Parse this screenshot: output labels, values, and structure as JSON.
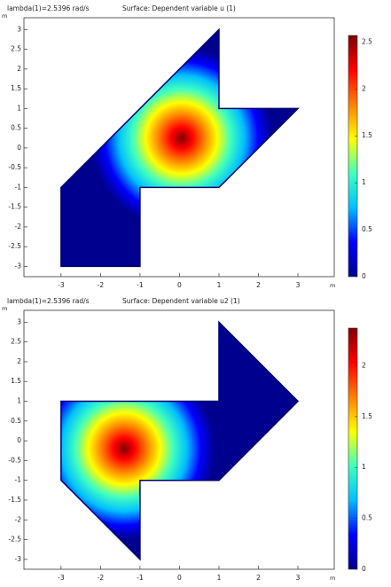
{
  "chart_data": [
    {
      "type": "surface",
      "subtitle": "lambda(1)=2.5396 rad/s",
      "title": "Surface: Dependent variable u (1)",
      "xlabel": "m",
      "ylabel": "m",
      "xlim": [
        -3.94,
        3.92
      ],
      "ylim": [
        -3.26,
        3.3
      ],
      "xticks": [
        -3,
        -2,
        -1,
        0,
        1,
        2,
        3
      ],
      "yticks": [
        -3,
        -2.5,
        -2,
        -1.5,
        -1,
        -0.5,
        0,
        0.5,
        1,
        1.5,
        2,
        2.5,
        3
      ],
      "domain_x": [
        1,
        1,
        3,
        1,
        -1,
        -1,
        -3,
        -3
      ],
      "domain_y": [
        3,
        1,
        1,
        -1,
        -1,
        -3,
        -3,
        -1
      ],
      "peak_x": 0.05,
      "peak_y": 0.25,
      "clim": [
        0,
        2.57
      ],
      "cticks": [
        0,
        0.5,
        1,
        1.5,
        2,
        2.5
      ],
      "colormap": [
        "#00008f",
        "#0000ff",
        "#00c0ff",
        "#40ffbf",
        "#ffff00",
        "#ff8000",
        "#ff0000",
        "#800000"
      ]
    },
    {
      "type": "surface",
      "subtitle": "lambda(1)=2.5396 rad/s",
      "title": "Surface: Dependent variable u2 (1)",
      "xlabel": "m",
      "ylabel": "m",
      "xlim": [
        -3.94,
        3.92
      ],
      "ylim": [
        -3.25,
        3.3
      ],
      "xticks": [
        -3,
        -2,
        -1,
        0,
        1,
        2,
        3
      ],
      "yticks": [
        -3,
        -2.5,
        -2,
        -1.5,
        -1,
        -0.5,
        0,
        0.5,
        1,
        1.5,
        2,
        2.5,
        3
      ],
      "domain_x": [
        -3,
        1,
        1,
        3,
        1,
        -1,
        -1,
        -3
      ],
      "domain_y": [
        1,
        1,
        3,
        1,
        -1,
        -1,
        -3,
        -1
      ],
      "peak_x": -1.4,
      "peak_y": -0.2,
      "clim": [
        0,
        2.37
      ],
      "cticks": [
        0,
        0.5,
        1,
        1.5,
        2
      ],
      "colormap": [
        "#00008f",
        "#0000ff",
        "#00c0ff",
        "#40ffbf",
        "#ffff00",
        "#ff8000",
        "#ff0000",
        "#800000"
      ]
    }
  ]
}
